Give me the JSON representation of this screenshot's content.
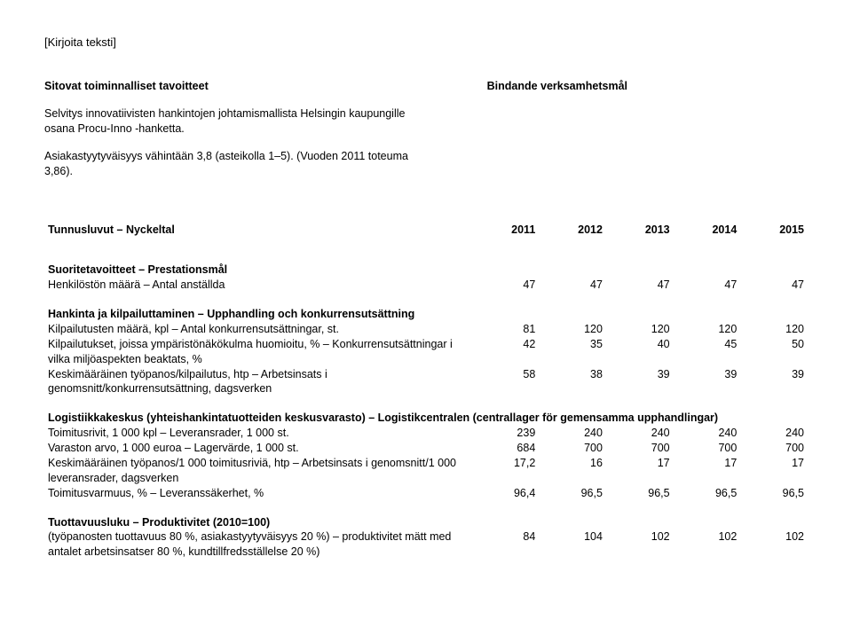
{
  "header_placeholder": "[Kirjoita teksti]",
  "left_block": {
    "title": "Sitovat toiminnalliset tavoitteet",
    "p1": "Selvitys innovatiivisten hankintojen johtamismallista Helsingin kaupungille osana Procu-Inno -hanketta.",
    "p2": "Asiakastyytyväisyys vähintään 3,8 (asteikolla 1–5). (Vuoden 2011 toteuma 3,86)."
  },
  "right_block": {
    "title": "Bindande verksamhetsmål"
  },
  "table": {
    "header": {
      "label": "Tunnusluvut – Nyckeltal",
      "years": [
        "2011",
        "2012",
        "2013",
        "2014",
        "2015"
      ]
    },
    "suoritetavoitteet_label": "Suoritetavoitteet – Prestationsmål",
    "henkilosto": {
      "label": "Henkilöstön määrä – Antal anställda",
      "vals": [
        "47",
        "47",
        "47",
        "47",
        "47"
      ]
    },
    "hankinta_title": "Hankinta ja kilpailuttaminen – Upphandling och konkurrensutsättning",
    "kilpailutusten": {
      "label": "Kilpailutusten määrä, kpl – Antal konkurrensutsättningar, st.",
      "vals": [
        "81",
        "120",
        "120",
        "120",
        "120"
      ]
    },
    "kilpailutukset": {
      "label": "Kilpailutukset, joissa ympäristönäkökulma huomioitu, % – Konkurrensutsättningar i vilka miljöaspekten beaktats, %",
      "vals": [
        "42",
        "35",
        "40",
        "45",
        "50"
      ]
    },
    "keskim1": {
      "label": "Keskimääräinen työpanos/kilpailutus, htp – Arbetsinsats i genomsnitt/konkurrensutsättning, dagsverken",
      "vals": [
        "58",
        "38",
        "39",
        "39",
        "39"
      ]
    },
    "logistiikka_title": "Logistiikkakeskus (yhteishankintatuotteiden keskusvarasto) – Logistikcentralen (centrallager för gemensamma upphandlingar)",
    "toimitusrivit": {
      "label": "Toimitusrivit, 1 000 kpl – Leveransrader, 1 000 st.",
      "vals": [
        "239",
        "240",
        "240",
        "240",
        "240"
      ]
    },
    "varaston": {
      "label": "Varaston arvo, 1 000 euroa – Lagervärde, 1 000 st.",
      "vals": [
        "684",
        "700",
        "700",
        "700",
        "700"
      ]
    },
    "keskim2": {
      "label": "Keskimääräinen työpanos/1 000 toimitusriviä, htp – Arbetsinsats i genomsnitt/1 000 leveransrader, dagsverken",
      "vals": [
        "17,2",
        "16",
        "17",
        "17",
        "17"
      ]
    },
    "toimitusvarmuus": {
      "label": "Toimitusvarmuus, % – Leveranssäkerhet, %",
      "vals": [
        "96,4",
        "96,5",
        "96,5",
        "96,5",
        "96,5"
      ]
    },
    "tuottavuus_title": "Tuottavuusluku – Produktivitet (2010=100)",
    "tuottavuus": {
      "label": "(työpanosten tuottavuus 80 %, asiakastyytyväisyys 20 %) – produktivitet mätt med antalet arbetsinsatser 80 %, kundtillfredsställelse 20 %)",
      "vals": [
        "84",
        "104",
        "102",
        "102",
        "102"
      ]
    }
  }
}
